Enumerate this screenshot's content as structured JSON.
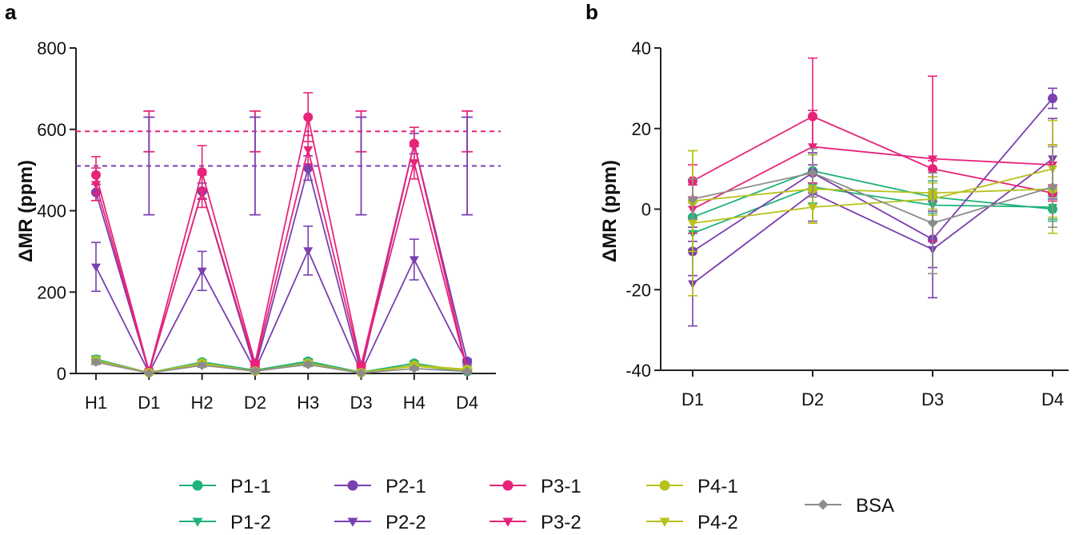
{
  "colors": {
    "P1": "#1FB27A",
    "P2": "#7A3FB0",
    "P3": "#E8237A",
    "P4": "#B7C21A",
    "BSA": "#8C8C8C",
    "axis": "#222222"
  },
  "chart_data": [
    {
      "panel": "a",
      "type": "line",
      "ylabel": "ΔMR (ppm)",
      "xlabel": "",
      "ylim": [
        0,
        800
      ],
      "yticks": [
        "0",
        "200",
        "400",
        "600",
        "800"
      ],
      "categories": [
        "H1",
        "D1",
        "H2",
        "D2",
        "H3",
        "D3",
        "H4",
        "D4"
      ],
      "reference_lines": [
        {
          "value": 595,
          "color": "#E8237A",
          "style": "dashed"
        },
        {
          "value": 510,
          "color": "#7A3FB0",
          "style": "dashed"
        }
      ],
      "reference_errorbars": [
        {
          "color": "#E8237A",
          "center": 595,
          "err": 50,
          "at": [
            "D1",
            "D2",
            "D3",
            "D4"
          ]
        },
        {
          "color": "#7A3FB0",
          "center": 510,
          "err": 120,
          "at": [
            "D1",
            "D2",
            "D3",
            "D4"
          ]
        }
      ],
      "series": [
        {
          "name": "P1-1",
          "group": "P1",
          "marker": "circle",
          "values": [
            35,
            2,
            28,
            8,
            30,
            3,
            25,
            5
          ],
          "errors": [
            8,
            2,
            6,
            3,
            6,
            2,
            5,
            2
          ]
        },
        {
          "name": "P1-2",
          "group": "P1",
          "marker": "triangle-down",
          "values": [
            30,
            2,
            25,
            7,
            27,
            3,
            20,
            4
          ],
          "errors": [
            7,
            2,
            6,
            3,
            6,
            2,
            5,
            2
          ]
        },
        {
          "name": "P2-1",
          "group": "P2",
          "marker": "circle",
          "values": [
            445,
            3,
            448,
            10,
            505,
            3,
            565,
            30
          ],
          "errors": [
            20,
            2,
            20,
            4,
            30,
            2,
            25,
            5
          ]
        },
        {
          "name": "P2-2",
          "group": "P2",
          "marker": "triangle-down",
          "values": [
            262,
            2,
            252,
            8,
            302,
            3,
            280,
            25
          ],
          "errors": [
            60,
            2,
            48,
            4,
            60,
            2,
            50,
            5
          ]
        },
        {
          "name": "P3-1",
          "group": "P3",
          "marker": "circle",
          "values": [
            488,
            6,
            495,
            25,
            630,
            20,
            565,
            8
          ],
          "errors": [
            45,
            3,
            65,
            5,
            60,
            4,
            40,
            3
          ]
        },
        {
          "name": "P3-2",
          "group": "P3",
          "marker": "triangle-down",
          "values": [
            465,
            4,
            448,
            20,
            550,
            15,
            518,
            6
          ],
          "errors": [
            40,
            3,
            40,
            5,
            35,
            4,
            40,
            3
          ]
        },
        {
          "name": "P4-1",
          "group": "P4",
          "marker": "circle",
          "values": [
            32,
            2,
            25,
            6,
            25,
            2,
            20,
            10
          ],
          "errors": [
            6,
            2,
            5,
            3,
            5,
            2,
            5,
            3
          ]
        },
        {
          "name": "P4-2",
          "group": "P4",
          "marker": "triangle-down",
          "values": [
            30,
            2,
            22,
            5,
            24,
            2,
            18,
            8
          ],
          "errors": [
            6,
            2,
            5,
            3,
            5,
            2,
            5,
            3
          ]
        },
        {
          "name": "BSA",
          "group": "BSA",
          "marker": "diamond",
          "values": [
            28,
            1,
            20,
            6,
            22,
            1,
            12,
            5
          ],
          "errors": [
            6,
            1,
            5,
            3,
            5,
            1,
            4,
            2
          ]
        }
      ]
    },
    {
      "panel": "b",
      "type": "line",
      "ylabel": "ΔMR (ppm)",
      "xlabel": "",
      "ylim": [
        -40,
        40
      ],
      "yticks": [
        "-40",
        "-20",
        "0",
        "20",
        "40"
      ],
      "categories": [
        "D1",
        "D2",
        "D3",
        "D4"
      ],
      "series": [
        {
          "name": "P1-1",
          "group": "P1",
          "marker": "circle",
          "values": [
            -2,
            9.5,
            3,
            0
          ],
          "errors": [
            4,
            4,
            4,
            3
          ]
        },
        {
          "name": "P1-2",
          "group": "P1",
          "marker": "triangle-down",
          "values": [
            -6,
            5.5,
            1,
            0.5
          ],
          "errors": [
            4,
            4,
            4,
            3
          ]
        },
        {
          "name": "P2-1",
          "group": "P2",
          "marker": "circle",
          "values": [
            -10.5,
            9,
            -7.5,
            27.5
          ],
          "errors": [
            6,
            5,
            7,
            2.5
          ]
        },
        {
          "name": "P2-2",
          "group": "P2",
          "marker": "triangle-down",
          "values": [
            -18.5,
            4,
            -10,
            12.5
          ],
          "errors": [
            10.5,
            7,
            12,
            10
          ]
        },
        {
          "name": "P3-1",
          "group": "P3",
          "marker": "circle",
          "values": [
            7,
            23,
            10,
            4
          ],
          "errors": [
            4,
            14.5,
            2,
            2
          ]
        },
        {
          "name": "P3-2",
          "group": "P3",
          "marker": "triangle-down",
          "values": [
            0,
            15.5,
            12.5,
            11
          ],
          "errors": [
            6,
            9,
            20.5,
            5
          ]
        },
        {
          "name": "P4-1",
          "group": "P4",
          "marker": "circle",
          "values": [
            2,
            5,
            4,
            5
          ],
          "errors": [
            12.5,
            8.5,
            4,
            11
          ]
        },
        {
          "name": "P4-2",
          "group": "P4",
          "marker": "triangle-down",
          "values": [
            -3.5,
            0.5,
            2.5,
            10
          ],
          "errors": [
            18,
            4,
            4,
            12
          ]
        },
        {
          "name": "BSA",
          "group": "BSA",
          "marker": "diamond",
          "values": [
            2.5,
            9,
            -3.5,
            5.5
          ],
          "errors": [
            5,
            6,
            12.5,
            10
          ]
        }
      ]
    }
  ],
  "legend": {
    "entries": [
      {
        "name": "P1-1",
        "group": "P1",
        "marker": "circle"
      },
      {
        "name": "P1-2",
        "group": "P1",
        "marker": "triangle-down"
      },
      {
        "name": "P2-1",
        "group": "P2",
        "marker": "circle"
      },
      {
        "name": "P2-2",
        "group": "P2",
        "marker": "triangle-down"
      },
      {
        "name": "P3-1",
        "group": "P3",
        "marker": "circle"
      },
      {
        "name": "P3-2",
        "group": "P3",
        "marker": "triangle-down"
      },
      {
        "name": "P4-1",
        "group": "P4",
        "marker": "circle"
      },
      {
        "name": "P4-2",
        "group": "P4",
        "marker": "triangle-down"
      },
      {
        "name": "BSA",
        "group": "BSA",
        "marker": "diamond"
      }
    ]
  }
}
